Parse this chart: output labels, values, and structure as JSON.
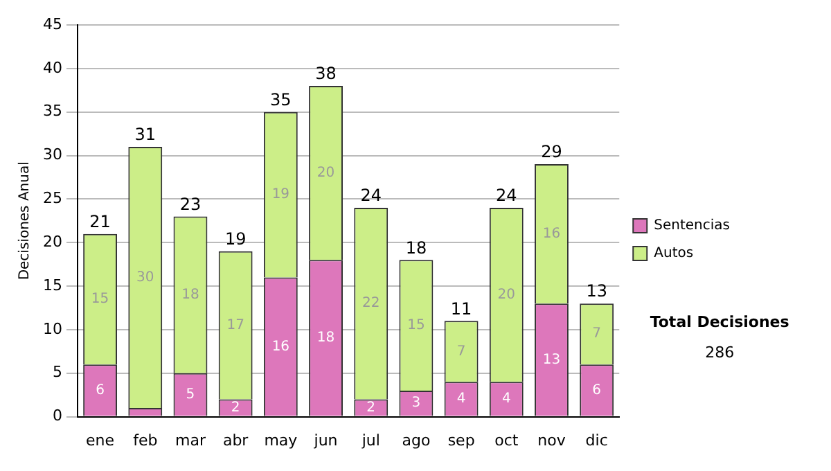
{
  "chart_data": {
    "type": "bar",
    "stacked": true,
    "ylabel": "Decisiones Anual",
    "categories": [
      "ene",
      "feb",
      "mar",
      "abr",
      "may",
      "jun",
      "jul",
      "ago",
      "sep",
      "oct",
      "nov",
      "dic"
    ],
    "series": [
      {
        "name": "Sentencias",
        "color": "#dd77bb",
        "values": [
          6,
          1,
          5,
          2,
          16,
          18,
          2,
          3,
          4,
          4,
          13,
          6
        ],
        "value_labels": [
          "6",
          null,
          "5",
          "2",
          "16",
          "18",
          "2",
          "3",
          "4",
          "4",
          "13",
          "6"
        ]
      },
      {
        "name": "Autos",
        "color": "#ccee88",
        "values": [
          15,
          30,
          18,
          17,
          19,
          20,
          22,
          15,
          7,
          20,
          16,
          7
        ],
        "value_labels": [
          "15",
          "30",
          "18",
          "17",
          "19",
          "20",
          "22",
          "15",
          "7",
          "20",
          "16",
          "7"
        ]
      }
    ],
    "totals": [
      "21",
      "31",
      "23",
      "19",
      "35",
      "38",
      "24",
      "18",
      "11",
      "24",
      "29",
      "13"
    ],
    "ylim": [
      0,
      45
    ],
    "yticks": [
      0,
      5,
      10,
      15,
      20,
      25,
      30,
      35,
      40,
      45
    ],
    "grid": "y",
    "legend": "right",
    "annotations": [
      "Total Decisiones",
      "286"
    ]
  }
}
